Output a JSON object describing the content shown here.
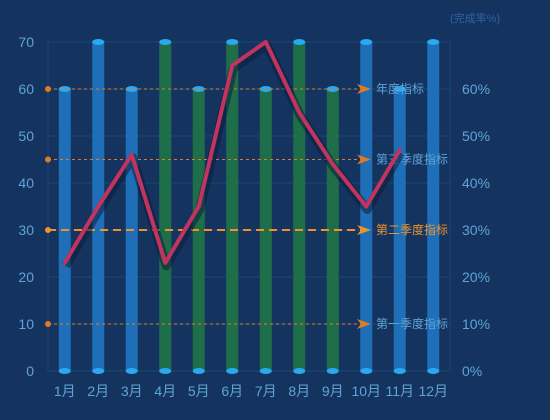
{
  "chart_data": {
    "type": "bar",
    "categories": [
      "1月",
      "2月",
      "3月",
      "4月",
      "5月",
      "6月",
      "7月",
      "8月",
      "9月",
      "10月",
      "11月",
      "12月"
    ],
    "bars": [
      60,
      70,
      60,
      70,
      60,
      70,
      60,
      70,
      60,
      70,
      60,
      70
    ],
    "bar_colors": [
      "#1f6fb8",
      "#1f6fb8",
      "#1f6fb8",
      "#1f6e4a",
      "#1f6e4a",
      "#1f6e4a",
      "#1f6e4a",
      "#1f6e4a",
      "#1f6e4a",
      "#1f6fb8",
      "#1f6fb8",
      "#1f6fb8"
    ],
    "line": [
      23,
      35,
      46,
      23,
      35,
      65,
      70,
      55,
      44,
      35,
      47
    ],
    "ylim": [
      0,
      70
    ],
    "yticks": [
      0,
      10,
      20,
      30,
      40,
      50,
      60,
      70
    ],
    "y2ticks": [
      "0%",
      "10%",
      "20%",
      "30%",
      "40%",
      "50%",
      "60%"
    ],
    "unit_label": "(完成率%)",
    "marklines": [
      {
        "label": "年度指标",
        "value": 60,
        "color": "#e07b22",
        "text_color": "#5fa3d8",
        "dash": "3,3",
        "width": 1
      },
      {
        "label": "第三季度指标",
        "value": 45,
        "color": "#e07b22",
        "text_color": "#5fa3d8",
        "dash": "3,3",
        "width": 1
      },
      {
        "label": "第二季度指标",
        "value": 30,
        "color": "#f0922a",
        "text_color": "#f0922a",
        "dash": "8,5",
        "width": 2
      },
      {
        "label": "第一季度指标",
        "value": 10,
        "color": "#e07b22",
        "text_color": "#5fa3d8",
        "dash": "3,3",
        "width": 1
      }
    ],
    "colors": {
      "background": "#14345f",
      "line": "#c2345f",
      "bar_cap": "#2aa8f0",
      "tick": "#5fa3d8",
      "grid": "#1c4677"
    }
  }
}
